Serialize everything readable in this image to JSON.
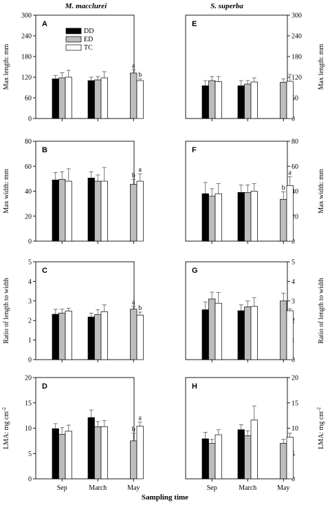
{
  "figure": {
    "left_title": "M. macclurei",
    "right_title": "S. superba",
    "xlabel": "Sampling time",
    "colors": {
      "DD": "#000000",
      "ED": "#bdbdbd",
      "TC": "#ffffff"
    }
  },
  "chart_data": [
    {
      "type": "bar",
      "panel": "A",
      "species": "M. macclurei",
      "ylabel": "Max length: mm",
      "ylim": [
        0,
        300
      ],
      "yticks": [
        0,
        60,
        120,
        180,
        240,
        300
      ],
      "categories": [
        "Sep",
        "March",
        "May"
      ],
      "legend": [
        "DD",
        "ED",
        "TC"
      ],
      "series": [
        {
          "name": "DD",
          "values": [
            115,
            110,
            null
          ],
          "errors": [
            10,
            10,
            null
          ]
        },
        {
          "name": "ED",
          "values": [
            118,
            112,
            132
          ],
          "errors": [
            15,
            10,
            10
          ]
        },
        {
          "name": "TC",
          "values": [
            120,
            118,
            110
          ],
          "errors": [
            20,
            18,
            5
          ]
        }
      ],
      "annotations": [
        {
          "category": "May",
          "series": "ED",
          "text": "a"
        },
        {
          "category": "May",
          "series": "TC",
          "text": "b"
        }
      ]
    },
    {
      "type": "bar",
      "panel": "B",
      "species": "M. macclurei",
      "ylabel": "Max width: mm",
      "ylim": [
        0,
        80
      ],
      "yticks": [
        0,
        20,
        40,
        60,
        80
      ],
      "categories": [
        "Sep",
        "March",
        "May"
      ],
      "series": [
        {
          "name": "DD",
          "values": [
            49,
            50.5,
            null
          ],
          "errors": [
            6,
            5,
            null
          ]
        },
        {
          "name": "ED",
          "values": [
            49.5,
            48,
            45.5
          ],
          "errors": [
            6,
            5,
            4
          ]
        },
        {
          "name": "TC",
          "values": [
            48,
            48,
            48
          ],
          "errors": [
            10,
            11,
            6
          ]
        }
      ],
      "annotations": [
        {
          "category": "May",
          "series": "ED",
          "text": "b"
        },
        {
          "category": "May",
          "series": "TC",
          "text": "a"
        }
      ]
    },
    {
      "type": "bar",
      "panel": "C",
      "species": "M. macclurei",
      "ylabel": "Ratio of length to width",
      "ylim": [
        0,
        5
      ],
      "yticks": [
        0,
        1,
        2,
        3,
        4,
        5
      ],
      "categories": [
        "Sep",
        "March",
        "May"
      ],
      "series": [
        {
          "name": "DD",
          "values": [
            2.32,
            2.18,
            null
          ],
          "errors": [
            0.25,
            0.2,
            null
          ]
        },
        {
          "name": "ED",
          "values": [
            2.38,
            2.3,
            2.58
          ],
          "errors": [
            0.2,
            0.25,
            0.15
          ]
        },
        {
          "name": "TC",
          "values": [
            2.48,
            2.45,
            2.28
          ],
          "errors": [
            0.15,
            0.35,
            0.15
          ]
        }
      ],
      "annotations": [
        {
          "category": "May",
          "series": "ED",
          "text": "a"
        },
        {
          "category": "May",
          "series": "TC",
          "text": "b"
        }
      ]
    },
    {
      "type": "bar",
      "panel": "D",
      "species": "M. macclurei",
      "ylabel": "LMA: mg cm",
      "ylabel_sup": "-2",
      "ylim": [
        0,
        20
      ],
      "yticks": [
        0,
        5,
        10,
        15,
        20
      ],
      "categories": [
        "Sep",
        "March",
        "May"
      ],
      "series": [
        {
          "name": "DD",
          "values": [
            9.9,
            12.1,
            null
          ],
          "errors": [
            1.0,
            1.5,
            null
          ]
        },
        {
          "name": "ED",
          "values": [
            8.8,
            10.3,
            7.5
          ],
          "errors": [
            1.3,
            1.0,
            1.5
          ]
        },
        {
          "name": "TC",
          "values": [
            9.4,
            10.3,
            10.4
          ],
          "errors": [
            1.2,
            1.2,
            0.8
          ]
        }
      ],
      "annotations": [
        {
          "category": "May",
          "series": "ED",
          "text": "b"
        },
        {
          "category": "May",
          "series": "TC",
          "text": "a"
        }
      ]
    },
    {
      "type": "bar",
      "panel": "E",
      "species": "S. superba",
      "ylabel": "Max length: mm",
      "ylim": [
        0,
        300
      ],
      "yticks": [
        0,
        60,
        120,
        180,
        240,
        300
      ],
      "categories": [
        "Sep",
        "March",
        "May"
      ],
      "series": [
        {
          "name": "DD",
          "values": [
            95,
            95,
            null
          ],
          "errors": [
            15,
            15,
            null
          ]
        },
        {
          "name": "ED",
          "values": [
            110,
            100,
            105
          ],
          "errors": [
            12,
            10,
            10
          ]
        },
        {
          "name": "TC",
          "values": [
            107,
            106,
            108
          ],
          "errors": [
            15,
            12,
            20
          ]
        }
      ]
    },
    {
      "type": "bar",
      "panel": "F",
      "species": "S. superba",
      "ylabel": "Max width: mm",
      "ylim": [
        0,
        80
      ],
      "yticks": [
        0,
        20,
        40,
        60,
        80
      ],
      "categories": [
        "Sep",
        "March",
        "May"
      ],
      "series": [
        {
          "name": "DD",
          "values": [
            38,
            39,
            null
          ],
          "errors": [
            9,
            6,
            null
          ]
        },
        {
          "name": "ED",
          "values": [
            36,
            39,
            33.5
          ],
          "errors": [
            6,
            6,
            6
          ]
        },
        {
          "name": "TC",
          "values": [
            38,
            40,
            44.5
          ],
          "errors": [
            8,
            6,
            7
          ]
        }
      ],
      "annotations": [
        {
          "category": "May",
          "series": "ED",
          "text": "b"
        },
        {
          "category": "May",
          "series": "TC",
          "text": "a"
        }
      ]
    },
    {
      "type": "bar",
      "panel": "G",
      "species": "S. superba",
      "ylabel": "Ratio of length to width",
      "ylim": [
        0,
        5
      ],
      "yticks": [
        0,
        1,
        2,
        3,
        4,
        5
      ],
      "categories": [
        "Sep",
        "March",
        "May"
      ],
      "series": [
        {
          "name": "DD",
          "values": [
            2.55,
            2.5,
            null
          ],
          "errors": [
            0.4,
            0.3,
            null
          ]
        },
        {
          "name": "ED",
          "values": [
            3.1,
            2.7,
            3.0
          ],
          "errors": [
            0.35,
            0.3,
            0.4
          ]
        },
        {
          "name": "TC",
          "values": [
            2.88,
            2.72,
            2.5
          ],
          "errors": [
            0.55,
            0.45,
            0.1
          ]
        }
      ]
    },
    {
      "type": "bar",
      "panel": "H",
      "species": "S. superba",
      "ylabel": "LMA: mg cm",
      "ylabel_sup": "-2",
      "ylim": [
        0,
        20
      ],
      "yticks": [
        0,
        5,
        10,
        15,
        20
      ],
      "categories": [
        "Sep",
        "March",
        "May"
      ],
      "series": [
        {
          "name": "DD",
          "values": [
            7.9,
            9.7,
            null
          ],
          "errors": [
            1.3,
            1.0,
            null
          ]
        },
        {
          "name": "ED",
          "values": [
            7.0,
            8.5,
            7.0
          ],
          "errors": [
            0.8,
            1.0,
            0.8
          ]
        },
        {
          "name": "TC",
          "values": [
            8.7,
            11.6,
            8.2
          ],
          "errors": [
            1.0,
            2.8,
            0.8
          ]
        }
      ]
    }
  ]
}
